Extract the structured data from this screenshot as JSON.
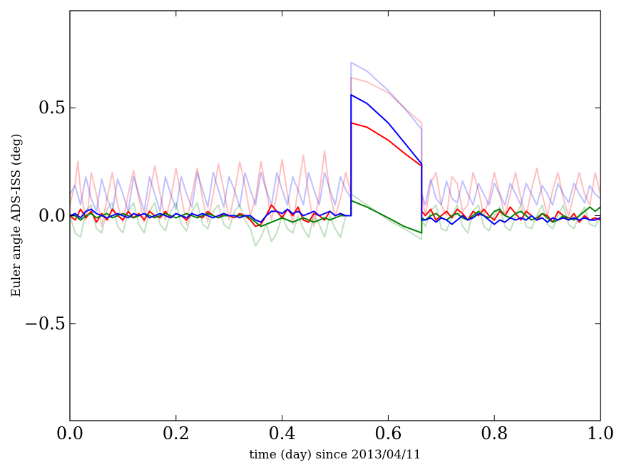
{
  "chart_data": {
    "type": "line",
    "xlabel": "time (day) since 2013/04/11",
    "ylabel": "Euler angle ADS-ISS (deg)",
    "xlim": [
      0.0,
      1.0
    ],
    "ylim": [
      -0.95,
      0.95
    ],
    "x_ticks": [
      0.0,
      0.2,
      0.4,
      0.6,
      0.8,
      1.0
    ],
    "x_tick_labels": [
      "0.0",
      "0.2",
      "0.4",
      "0.6",
      "0.8",
      "1.0"
    ],
    "y_ticks": [
      0.5,
      0.0,
      -0.5
    ],
    "y_tick_labels": [
      "0.5",
      "0.0",
      "−0.5"
    ],
    "grid": false,
    "legend": "none",
    "series": [
      {
        "color": "#ff0000",
        "opacity": 0.25,
        "x": [
          0.0,
          0.01,
          0.015,
          0.02,
          0.03,
          0.035,
          0.04,
          0.05,
          0.06,
          0.07,
          0.08,
          0.09,
          0.1,
          0.11,
          0.12,
          0.13,
          0.14,
          0.15,
          0.16,
          0.17,
          0.18,
          0.19,
          0.2,
          0.21,
          0.22,
          0.23,
          0.24,
          0.25,
          0.26,
          0.27,
          0.28,
          0.29,
          0.3,
          0.31,
          0.32,
          0.33,
          0.34,
          0.35,
          0.36,
          0.37,
          0.38,
          0.39,
          0.4,
          0.41,
          0.42,
          0.43,
          0.44,
          0.45,
          0.46,
          0.47,
          0.48,
          0.49,
          0.5,
          0.51,
          0.52,
          0.53,
          0.53,
          0.56,
          0.6,
          0.63,
          0.663,
          0.663,
          0.67,
          0.68,
          0.69,
          0.7,
          0.71,
          0.72,
          0.73,
          0.74,
          0.75,
          0.76,
          0.77,
          0.78,
          0.79,
          0.8,
          0.81,
          0.82,
          0.83,
          0.84,
          0.85,
          0.86,
          0.87,
          0.88,
          0.89,
          0.9,
          0.91,
          0.92,
          0.93,
          0.94,
          0.95,
          0.96,
          0.97,
          0.98,
          0.99,
          1.0
        ],
        "y": [
          0.05,
          0.15,
          0.25,
          0.12,
          -0.02,
          0.05,
          0.2,
          0.1,
          -0.05,
          0.08,
          0.2,
          0.05,
          -0.03,
          0.1,
          0.21,
          0.08,
          -0.03,
          0.1,
          0.23,
          0.1,
          -0.02,
          0.08,
          0.22,
          0.09,
          -0.04,
          0.1,
          0.22,
          0.08,
          -0.03,
          0.1,
          0.24,
          0.12,
          -0.02,
          0.1,
          0.25,
          0.14,
          0.0,
          0.08,
          0.25,
          0.12,
          -0.02,
          0.1,
          0.26,
          0.1,
          -0.04,
          0.12,
          0.28,
          0.1,
          -0.05,
          0.1,
          0.3,
          0.1,
          0.0,
          0.08,
          0.2,
          0.1,
          0.64,
          0.62,
          0.57,
          0.5,
          0.43,
          0.1,
          0.0,
          0.15,
          0.2,
          0.05,
          0.0,
          0.18,
          0.15,
          0.02,
          0.05,
          0.2,
          0.12,
          0.0,
          0.08,
          0.2,
          0.1,
          0.0,
          0.1,
          0.2,
          0.08,
          0.0,
          0.12,
          0.22,
          0.1,
          0.0,
          0.12,
          0.2,
          0.08,
          0.0,
          0.1,
          0.2,
          0.1,
          0.05,
          0.2,
          0.1
        ]
      },
      {
        "color": "#0000ff",
        "opacity": 0.25,
        "x": [
          0.0,
          0.01,
          0.02,
          0.03,
          0.04,
          0.05,
          0.06,
          0.07,
          0.08,
          0.09,
          0.1,
          0.11,
          0.12,
          0.13,
          0.14,
          0.15,
          0.16,
          0.17,
          0.18,
          0.19,
          0.2,
          0.21,
          0.22,
          0.23,
          0.24,
          0.25,
          0.26,
          0.27,
          0.28,
          0.29,
          0.3,
          0.31,
          0.32,
          0.33,
          0.34,
          0.35,
          0.36,
          0.37,
          0.38,
          0.39,
          0.4,
          0.41,
          0.42,
          0.43,
          0.44,
          0.45,
          0.46,
          0.47,
          0.48,
          0.49,
          0.5,
          0.51,
          0.52,
          0.53,
          0.53,
          0.56,
          0.6,
          0.63,
          0.663,
          0.663,
          0.67,
          0.68,
          0.69,
          0.7,
          0.71,
          0.72,
          0.73,
          0.74,
          0.75,
          0.76,
          0.77,
          0.78,
          0.79,
          0.8,
          0.81,
          0.82,
          0.83,
          0.84,
          0.85,
          0.86,
          0.87,
          0.88,
          0.89,
          0.9,
          0.91,
          0.92,
          0.93,
          0.94,
          0.95,
          0.96,
          0.97,
          0.98,
          0.99,
          1.0
        ],
        "y": [
          0.1,
          0.14,
          0.05,
          0.18,
          0.08,
          0.02,
          0.17,
          0.08,
          0.02,
          0.17,
          0.1,
          0.02,
          0.18,
          0.1,
          0.02,
          0.18,
          0.1,
          0.02,
          0.18,
          0.1,
          0.03,
          0.18,
          0.1,
          0.04,
          0.2,
          0.12,
          0.04,
          0.2,
          0.12,
          0.04,
          0.18,
          0.12,
          0.04,
          0.2,
          0.12,
          0.05,
          0.2,
          0.12,
          0.05,
          0.2,
          0.12,
          0.05,
          0.18,
          0.12,
          0.05,
          0.2,
          0.12,
          0.05,
          0.2,
          0.12,
          0.05,
          0.18,
          0.12,
          0.08,
          0.71,
          0.67,
          0.58,
          0.5,
          0.4,
          0.1,
          0.05,
          0.17,
          0.08,
          0.05,
          0.16,
          0.08,
          0.06,
          0.16,
          0.1,
          0.05,
          0.15,
          0.1,
          0.05,
          0.15,
          0.1,
          0.05,
          0.15,
          0.1,
          0.05,
          0.15,
          0.1,
          0.05,
          0.14,
          0.1,
          0.05,
          0.15,
          0.1,
          0.06,
          0.15,
          0.1,
          0.06,
          0.14,
          0.1,
          0.08
        ]
      },
      {
        "color": "#008000",
        "opacity": 0.25,
        "x": [
          0.0,
          0.01,
          0.02,
          0.03,
          0.04,
          0.05,
          0.06,
          0.07,
          0.08,
          0.09,
          0.1,
          0.11,
          0.12,
          0.13,
          0.14,
          0.15,
          0.16,
          0.17,
          0.18,
          0.19,
          0.2,
          0.21,
          0.22,
          0.23,
          0.24,
          0.25,
          0.26,
          0.27,
          0.28,
          0.29,
          0.3,
          0.31,
          0.32,
          0.33,
          0.34,
          0.35,
          0.36,
          0.37,
          0.38,
          0.39,
          0.4,
          0.41,
          0.42,
          0.43,
          0.44,
          0.45,
          0.46,
          0.47,
          0.48,
          0.49,
          0.5,
          0.51,
          0.52,
          0.53,
          0.53,
          0.56,
          0.6,
          0.63,
          0.663,
          0.663,
          0.67,
          0.68,
          0.69,
          0.7,
          0.71,
          0.72,
          0.73,
          0.74,
          0.75,
          0.76,
          0.77,
          0.78,
          0.79,
          0.8,
          0.81,
          0.82,
          0.83,
          0.84,
          0.85,
          0.86,
          0.87,
          0.88,
          0.89,
          0.9,
          0.91,
          0.92,
          0.93,
          0.94,
          0.95,
          0.96,
          0.97,
          0.98,
          0.99,
          1.0
        ],
        "y": [
          0.0,
          -0.08,
          -0.1,
          0.02,
          0.05,
          -0.06,
          -0.08,
          0.03,
          0.06,
          -0.05,
          -0.08,
          0.02,
          0.06,
          -0.04,
          -0.08,
          0.02,
          0.06,
          -0.04,
          -0.07,
          0.02,
          0.06,
          -0.04,
          -0.07,
          0.02,
          0.06,
          -0.04,
          -0.06,
          0.02,
          0.05,
          -0.04,
          -0.06,
          0.02,
          0.05,
          -0.02,
          -0.06,
          -0.14,
          -0.1,
          -0.04,
          -0.12,
          -0.08,
          0.0,
          -0.06,
          -0.08,
          0.0,
          -0.06,
          -0.1,
          0.0,
          -0.04,
          -0.1,
          0.0,
          -0.06,
          -0.1,
          0.0,
          0.0,
          0.1,
          0.05,
          -0.02,
          -0.06,
          -0.11,
          -0.02,
          -0.05,
          0.02,
          0.05,
          -0.06,
          -0.07,
          0.0,
          0.05,
          -0.05,
          -0.08,
          0.02,
          0.05,
          -0.05,
          -0.07,
          0.0,
          0.04,
          -0.05,
          -0.07,
          0.0,
          0.05,
          -0.05,
          -0.06,
          0.0,
          0.05,
          -0.04,
          -0.06,
          0.0,
          0.05,
          -0.04,
          -0.06,
          0.0,
          0.04,
          -0.04,
          -0.05,
          0.0
        ]
      },
      {
        "color": "#ff0000",
        "opacity": 1,
        "x": [
          0.0,
          0.01,
          0.02,
          0.03,
          0.04,
          0.05,
          0.06,
          0.07,
          0.08,
          0.09,
          0.1,
          0.11,
          0.12,
          0.13,
          0.14,
          0.15,
          0.16,
          0.17,
          0.18,
          0.19,
          0.2,
          0.21,
          0.22,
          0.23,
          0.24,
          0.25,
          0.26,
          0.27,
          0.28,
          0.29,
          0.3,
          0.31,
          0.32,
          0.33,
          0.34,
          0.35,
          0.36,
          0.37,
          0.38,
          0.39,
          0.4,
          0.41,
          0.42,
          0.43,
          0.44,
          0.45,
          0.46,
          0.47,
          0.48,
          0.49,
          0.5,
          0.51,
          0.52,
          0.53,
          0.53,
          0.56,
          0.6,
          0.63,
          0.663,
          0.663,
          0.67,
          0.68,
          0.69,
          0.7,
          0.71,
          0.72,
          0.73,
          0.74,
          0.75,
          0.76,
          0.77,
          0.78,
          0.79,
          0.8,
          0.81,
          0.82,
          0.83,
          0.84,
          0.85,
          0.86,
          0.87,
          0.88,
          0.89,
          0.9,
          0.91,
          0.92,
          0.93,
          0.94,
          0.95,
          0.96,
          0.97,
          0.98,
          0.99,
          1.0
        ],
        "y": [
          0.0,
          -0.02,
          0.03,
          -0.01,
          0.02,
          -0.03,
          0.01,
          -0.02,
          0.03,
          0.0,
          -0.02,
          0.02,
          -0.01,
          0.01,
          -0.02,
          0.02,
          0.0,
          -0.01,
          0.02,
          -0.01,
          0.01,
          0.0,
          -0.02,
          0.01,
          0.0,
          -0.01,
          0.02,
          0.0,
          -0.01,
          0.01,
          0.0,
          -0.01,
          0.01,
          0.0,
          -0.02,
          -0.05,
          -0.04,
          0.0,
          0.05,
          0.02,
          -0.01,
          0.03,
          0.0,
          0.04,
          -0.02,
          -0.03,
          0.01,
          0.0,
          -0.02,
          0.02,
          0.0,
          0.01,
          0.0,
          0.0,
          0.43,
          0.41,
          0.35,
          0.29,
          0.23,
          0.02,
          0.0,
          0.03,
          -0.02,
          0.0,
          0.02,
          -0.01,
          0.03,
          0.01,
          -0.02,
          0.02,
          0.0,
          0.03,
          0.0,
          -0.02,
          0.02,
          0.0,
          0.04,
          0.01,
          -0.02,
          0.02,
          0.0,
          -0.02,
          0.01,
          0.0,
          -0.03,
          0.02,
          0.0,
          -0.02,
          0.01,
          -0.03,
          0.0,
          -0.02,
          -0.01,
          -0.02
        ]
      },
      {
        "color": "#008000",
        "opacity": 1,
        "x": [
          0.0,
          0.01,
          0.02,
          0.03,
          0.04,
          0.05,
          0.06,
          0.07,
          0.08,
          0.09,
          0.1,
          0.11,
          0.12,
          0.13,
          0.14,
          0.15,
          0.16,
          0.17,
          0.18,
          0.19,
          0.2,
          0.21,
          0.22,
          0.23,
          0.24,
          0.25,
          0.26,
          0.27,
          0.28,
          0.29,
          0.3,
          0.31,
          0.32,
          0.33,
          0.34,
          0.35,
          0.36,
          0.37,
          0.38,
          0.39,
          0.4,
          0.41,
          0.42,
          0.43,
          0.44,
          0.45,
          0.46,
          0.47,
          0.48,
          0.49,
          0.5,
          0.51,
          0.52,
          0.53,
          0.53,
          0.56,
          0.6,
          0.63,
          0.663,
          0.663,
          0.67,
          0.68,
          0.69,
          0.7,
          0.71,
          0.72,
          0.73,
          0.74,
          0.75,
          0.76,
          0.77,
          0.78,
          0.79,
          0.8,
          0.81,
          0.82,
          0.83,
          0.84,
          0.85,
          0.86,
          0.87,
          0.88,
          0.89,
          0.9,
          0.91,
          0.92,
          0.93,
          0.94,
          0.95,
          0.96,
          0.97,
          0.98,
          0.99,
          1.0
        ],
        "y": [
          0.0,
          0.0,
          -0.02,
          0.0,
          0.01,
          -0.01,
          0.0,
          0.01,
          -0.01,
          0.0,
          0.01,
          0.0,
          -0.01,
          0.0,
          0.01,
          0.0,
          -0.01,
          0.0,
          0.01,
          0.0,
          -0.01,
          0.0,
          0.01,
          0.0,
          -0.01,
          0.0,
          0.01,
          0.0,
          -0.01,
          0.0,
          0.0,
          0.0,
          0.0,
          0.0,
          -0.01,
          -0.03,
          -0.05,
          -0.04,
          -0.03,
          -0.02,
          -0.01,
          -0.02,
          -0.03,
          -0.02,
          -0.01,
          -0.02,
          -0.03,
          -0.02,
          -0.01,
          -0.02,
          -0.01,
          0.0,
          0.0,
          0.0,
          0.07,
          0.04,
          -0.01,
          -0.05,
          -0.08,
          -0.01,
          -0.02,
          0.0,
          0.01,
          -0.01,
          -0.02,
          0.0,
          0.01,
          -0.01,
          -0.02,
          0.0,
          0.02,
          0.0,
          -0.01,
          0.02,
          0.03,
          0.0,
          -0.01,
          0.01,
          0.02,
          0.0,
          -0.02,
          -0.01,
          0.01,
          -0.01,
          -0.03,
          -0.02,
          0.0,
          -0.01,
          -0.02,
          0.0,
          0.02,
          0.04,
          0.02,
          0.04
        ]
      },
      {
        "color": "#0000ff",
        "opacity": 1,
        "x": [
          0.0,
          0.01,
          0.02,
          0.03,
          0.04,
          0.05,
          0.06,
          0.07,
          0.08,
          0.09,
          0.1,
          0.11,
          0.12,
          0.13,
          0.14,
          0.15,
          0.16,
          0.17,
          0.18,
          0.19,
          0.2,
          0.21,
          0.22,
          0.23,
          0.24,
          0.25,
          0.26,
          0.27,
          0.28,
          0.29,
          0.3,
          0.31,
          0.32,
          0.33,
          0.34,
          0.35,
          0.36,
          0.37,
          0.38,
          0.39,
          0.4,
          0.41,
          0.42,
          0.43,
          0.44,
          0.45,
          0.46,
          0.47,
          0.48,
          0.49,
          0.5,
          0.51,
          0.52,
          0.53,
          0.53,
          0.56,
          0.6,
          0.63,
          0.663,
          0.663,
          0.67,
          0.68,
          0.69,
          0.7,
          0.71,
          0.72,
          0.73,
          0.74,
          0.75,
          0.76,
          0.77,
          0.78,
          0.79,
          0.8,
          0.81,
          0.82,
          0.83,
          0.84,
          0.85,
          0.86,
          0.87,
          0.88,
          0.89,
          0.9,
          0.91,
          0.92,
          0.93,
          0.94,
          0.95,
          0.96,
          0.97,
          0.98,
          0.99,
          1.0
        ],
        "y": [
          0.0,
          0.01,
          -0.01,
          0.02,
          0.03,
          0.01,
          0.0,
          -0.01,
          0.0,
          0.01,
          0.0,
          -0.01,
          0.01,
          0.0,
          0.01,
          -0.01,
          0.0,
          0.01,
          0.0,
          -0.01,
          0.01,
          0.0,
          -0.01,
          0.01,
          0.0,
          0.01,
          0.0,
          -0.01,
          0.0,
          0.01,
          0.0,
          0.0,
          -0.01,
          0.0,
          0.0,
          -0.02,
          -0.03,
          0.0,
          0.02,
          0.02,
          0.01,
          0.03,
          0.01,
          0.02,
          0.0,
          0.01,
          0.02,
          0.0,
          0.01,
          0.02,
          0.0,
          0.01,
          0.0,
          0.0,
          0.56,
          0.52,
          0.43,
          0.34,
          0.24,
          -0.02,
          -0.02,
          -0.01,
          -0.03,
          -0.01,
          -0.02,
          -0.04,
          -0.02,
          0.0,
          -0.02,
          -0.01,
          0.01,
          0.0,
          -0.02,
          -0.04,
          -0.02,
          -0.03,
          -0.01,
          -0.02,
          -0.01,
          -0.02,
          0.0,
          -0.02,
          -0.01,
          -0.03,
          -0.01,
          -0.02,
          -0.01,
          -0.02,
          -0.01,
          -0.02,
          -0.01,
          -0.02,
          -0.02,
          -0.01
        ]
      }
    ]
  }
}
